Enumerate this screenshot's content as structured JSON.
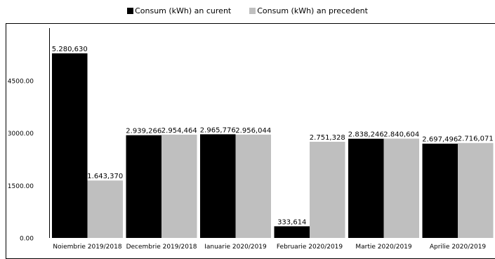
{
  "chart_data": {
    "type": "bar",
    "title": "",
    "xlabel": "",
    "ylabel": "",
    "ylim": [
      0,
      5150
    ],
    "yticks": [
      "0.00",
      "1500.00",
      "3000.00",
      "4500.00"
    ],
    "ytick_values": [
      0,
      1500,
      3000,
      4500
    ],
    "grid": false,
    "legend_position": "top-center",
    "categories": [
      "Noiembrie 2019/2018",
      "Decembrie 2019/2018",
      "Ianuarie 2020/2019",
      "Februarie 2020/2019",
      "Martie 2020/2019",
      "Aprilie 2020/2019"
    ],
    "series": [
      {
        "name": "Consum (kWh) an curent",
        "color": "#000000",
        "values": [
          5280.63,
          2939.266,
          2965.776,
          333.614,
          2838.246,
          2697.496
        ],
        "labels": [
          "5.280,630",
          "2.939,266",
          "2.965,776",
          "333,614",
          "2.838,246",
          "2.697,496"
        ]
      },
      {
        "name": "Consum (kWh) an precedent",
        "color": "#bfbfbf",
        "values": [
          1643.37,
          2954.464,
          2956.044,
          2751.328,
          2840.604,
          2716.071
        ],
        "labels": [
          "1.643,370",
          "2.954,464",
          "2.956,044",
          "2.751,328",
          "2.840,604",
          "2.716,071"
        ]
      }
    ]
  }
}
